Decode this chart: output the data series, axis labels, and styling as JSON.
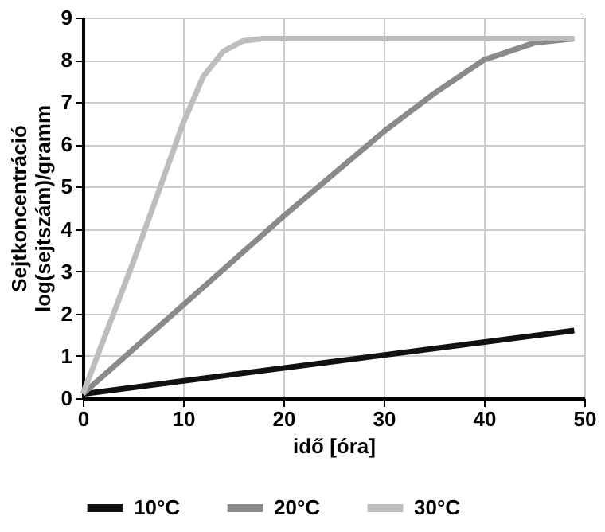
{
  "chart_data": {
    "type": "line",
    "xlabel": "idő [óra]",
    "ylabel": "Sejtkoncentráció\nlog(sejtszám)/gramm",
    "xlim": [
      0,
      50
    ],
    "xticks": [
      0,
      10,
      20,
      30,
      40,
      50
    ],
    "ylim": [
      0,
      9
    ],
    "yticks": [
      0,
      1,
      2,
      3,
      4,
      5,
      6,
      7,
      8,
      9
    ],
    "grid": true,
    "legend": "bottom",
    "line_style": "solid",
    "marker": "none",
    "series": [
      {
        "name": "10°C",
        "color": "#111111",
        "x": [
          0,
          49
        ],
        "values": [
          0.1,
          1.6
        ]
      },
      {
        "name": "20°C",
        "color": "#8a8a8a",
        "x": [
          0,
          10,
          20,
          30,
          35,
          40,
          45,
          49
        ],
        "values": [
          0.1,
          2.2,
          4.3,
          6.3,
          7.2,
          8.0,
          8.4,
          8.5
        ]
      },
      {
        "name": "30°C",
        "color": "#bdbdbd",
        "x": [
          0,
          5,
          10,
          12,
          14,
          16,
          18,
          20,
          30,
          40,
          49
        ],
        "values": [
          0.1,
          3.2,
          6.5,
          7.6,
          8.2,
          8.45,
          8.5,
          8.5,
          8.5,
          8.5,
          8.5
        ]
      }
    ]
  }
}
